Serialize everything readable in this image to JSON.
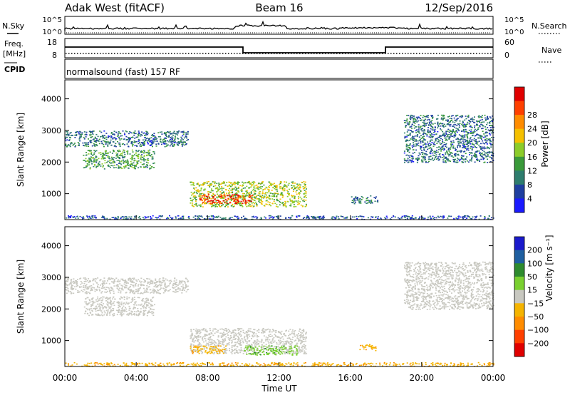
{
  "header": {
    "title": "Adak West (fitACF)",
    "beam": "Beam 16",
    "date": "12/Sep/2016"
  },
  "top_panels": {
    "nsky_label": "N.Sky",
    "nsky_ticks": [
      "10^5",
      "10^0"
    ],
    "nsearch_label": "N.Search",
    "nsearch_ticks": [
      "10^5",
      "10^0"
    ],
    "freq_label": "Freq.",
    "freq_unit": "[MHz]",
    "freq_ticks": [
      "18",
      "8"
    ],
    "nave_label": "Nave",
    "nave_ticks": [
      "60",
      "0"
    ],
    "cpid_label": "CPID",
    "cpid_text": "normalsound (fast) 157 RF"
  },
  "colors": {
    "power": [
      "#1a1aff",
      "#1f3fa0",
      "#2e7d6e",
      "#3a9a3a",
      "#8ccc2a",
      "#f5c000",
      "#ff8c00",
      "#ff4000",
      "#e00000"
    ],
    "velocity": [
      "#e00000",
      "#ff4000",
      "#ff8c00",
      "#f5b400",
      "#c8c8c0",
      "#7ad030",
      "#2e8b2e",
      "#1f5fa0",
      "#1a1acc"
    ],
    "ground_scatter": "#c8c8c0"
  },
  "chart_data": [
    {
      "type": "heatmap",
      "name": "power",
      "ylabel": "Slant Range [km]",
      "yticks": [
        "1000",
        "2000",
        "3000",
        "4000"
      ],
      "ylim": [
        180,
        4600
      ],
      "colorbar_label": "Power [dB]",
      "colorbar_ticks": [
        "4",
        "8",
        "12",
        "16",
        "20",
        "24",
        "28"
      ],
      "colorbar_range": [
        0,
        32
      ],
      "regions": [
        {
          "t0": 0.0,
          "t1": 6.9,
          "r0": 2500,
          "r1": 3000,
          "value": 8
        },
        {
          "t0": 1.0,
          "t1": 5.0,
          "r0": 1800,
          "r1": 2400,
          "value": 12
        },
        {
          "t0": 7.0,
          "t1": 13.5,
          "r0": 600,
          "r1": 1400,
          "value": 16
        },
        {
          "t0": 7.5,
          "t1": 10.5,
          "r0": 700,
          "r1": 1000,
          "value": 28
        },
        {
          "t0": 16.0,
          "t1": 17.5,
          "r0": 700,
          "r1": 950,
          "value": 8
        },
        {
          "t0": 19.0,
          "t1": 24.0,
          "r0": 2000,
          "r1": 3500,
          "value": 8
        },
        {
          "t0": 0.0,
          "t1": 24.0,
          "r0": 200,
          "r1": 320,
          "value": 6
        }
      ]
    },
    {
      "type": "heatmap",
      "name": "velocity",
      "ylabel": "Slant Range [km]",
      "yticks": [
        "1000",
        "2000",
        "3000",
        "4000"
      ],
      "ylim": [
        180,
        4600
      ],
      "colorbar_label": "Velocity [m s⁻¹]",
      "colorbar_ticks": [
        "200",
        "100",
        "50",
        "15",
        "−15",
        "−50",
        "−100",
        "−200"
      ],
      "regions": [
        {
          "t0": 0.0,
          "t1": 6.9,
          "r0": 2500,
          "r1": 3000,
          "value": 0
        },
        {
          "t0": 1.0,
          "t1": 5.0,
          "r0": 1800,
          "r1": 2400,
          "value": 0
        },
        {
          "t0": 7.0,
          "t1": 13.5,
          "r0": 600,
          "r1": 1400,
          "value": 0
        },
        {
          "t0": 7.0,
          "t1": 9.0,
          "r0": 600,
          "r1": 850,
          "value": -40
        },
        {
          "t0": 10.0,
          "t1": 13.0,
          "r0": 550,
          "r1": 850,
          "value": 40
        },
        {
          "t0": 16.5,
          "t1": 17.5,
          "r0": 700,
          "r1": 900,
          "value": -40
        },
        {
          "t0": 19.0,
          "t1": 24.0,
          "r0": 2000,
          "r1": 3500,
          "value": 0
        },
        {
          "t0": 0.0,
          "t1": 24.0,
          "r0": 200,
          "r1": 320,
          "value": -40
        }
      ]
    }
  ],
  "time_axis": {
    "label": "Time UT",
    "ticks": [
      "00:00",
      "04:00",
      "08:00",
      "12:00",
      "16:00",
      "20:00",
      "00:00"
    ]
  }
}
